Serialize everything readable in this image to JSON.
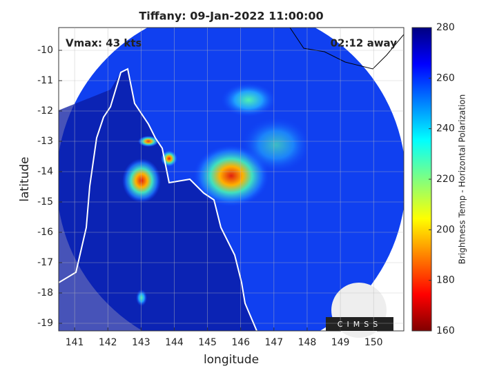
{
  "chart_data": {
    "type": "map",
    "title": "Tiffany: 09-Jan-2022 11:00:00",
    "annotations": [
      "Vmax: 43 kts",
      "02:12 away"
    ],
    "xlabel": "longitude",
    "ylabel": "latitude",
    "xlim": [
      140.52,
      150.91
    ],
    "ylim": [
      -19.25,
      -9.25
    ],
    "xticks": [
      141,
      142,
      143,
      144,
      145,
      146,
      147,
      148,
      149,
      150
    ],
    "yticks": [
      -10,
      -11,
      -12,
      -13,
      -14,
      -15,
      -16,
      -17,
      -18,
      -19
    ],
    "grid": true,
    "colorbar": {
      "label": "Brightness Temp - Horizontal Polarization",
      "clim": [
        160,
        280
      ],
      "ticks": [
        160,
        180,
        200,
        220,
        240,
        260,
        280
      ]
    },
    "logo": "CIMSS"
  }
}
